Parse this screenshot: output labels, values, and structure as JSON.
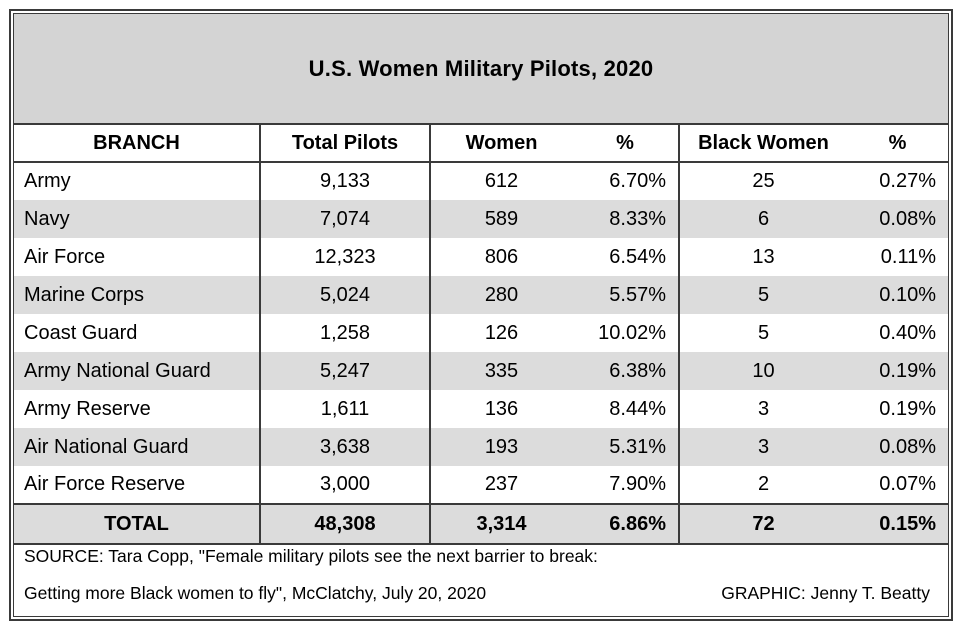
{
  "title": "U.S. Women Military Pilots, 2020",
  "columns": [
    "BRANCH",
    "Total Pilots",
    "Women",
    "%",
    "Black Women",
    "%"
  ],
  "rows": [
    {
      "branch": "Army",
      "total": "9,133",
      "women": "612",
      "women_pct": "6.70%",
      "black_women": "25",
      "black_pct": "0.27%"
    },
    {
      "branch": "Navy",
      "total": "7,074",
      "women": "589",
      "women_pct": "8.33%",
      "black_women": "6",
      "black_pct": "0.08%"
    },
    {
      "branch": "Air Force",
      "total": "12,323",
      "women": "806",
      "women_pct": "6.54%",
      "black_women": "13",
      "black_pct": "0.11%"
    },
    {
      "branch": "Marine Corps",
      "total": "5,024",
      "women": "280",
      "women_pct": "5.57%",
      "black_women": "5",
      "black_pct": "0.10%"
    },
    {
      "branch": "Coast Guard",
      "total": "1,258",
      "women": "126",
      "women_pct": "10.02%",
      "black_women": "5",
      "black_pct": "0.40%"
    },
    {
      "branch": "Army National Guard",
      "total": "5,247",
      "women": "335",
      "women_pct": "6.38%",
      "black_women": "10",
      "black_pct": "0.19%"
    },
    {
      "branch": "Army Reserve",
      "total": "1,611",
      "women": "136",
      "women_pct": "8.44%",
      "black_women": "3",
      "black_pct": "0.19%"
    },
    {
      "branch": "Air National Guard",
      "total": "3,638",
      "women": "193",
      "women_pct": "5.31%",
      "black_women": "3",
      "black_pct": "0.08%"
    },
    {
      "branch": "Air Force Reserve",
      "total": "3,000",
      "women": "237",
      "women_pct": "7.90%",
      "black_women": "2",
      "black_pct": "0.07%"
    }
  ],
  "total": {
    "branch": "TOTAL",
    "total": "48,308",
    "women": "3,314",
    "women_pct": "6.86%",
    "black_women": "72",
    "black_pct": "0.15%"
  },
  "source_line1": "SOURCE: Tara Copp, \"Female military pilots see the next barrier to break:",
  "source_line2": "Getting more Black women to fly\", McClatchy, July 20, 2020",
  "credit": "GRAPHIC: Jenny T. Beatty",
  "colors": {
    "title_band": "#d4d4d4",
    "row_shade": "#dcdcdc",
    "border": "#3a3a3a"
  }
}
